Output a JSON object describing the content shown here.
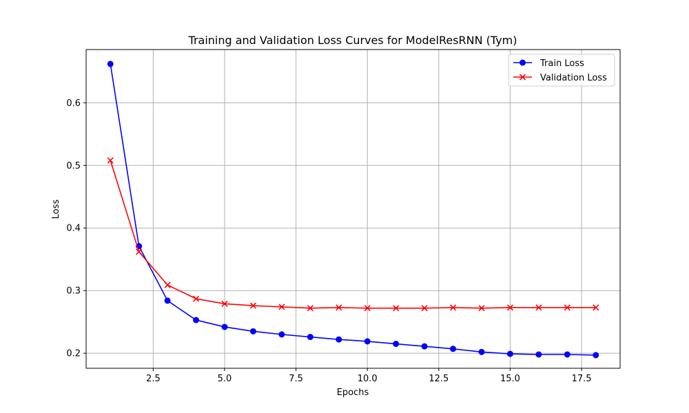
{
  "chart_data": {
    "type": "line",
    "title": "Training and Validation Loss Curves for ModelResRNN (Tym)",
    "xlabel": "Epochs",
    "ylabel": "Loss",
    "xlim": [
      0.15,
      18.85
    ],
    "ylim": [
      0.176,
      0.685
    ],
    "xticks": [
      2.5,
      5.0,
      7.5,
      10.0,
      12.5,
      15.0,
      17.5
    ],
    "xtick_labels": [
      "2.5",
      "5.0",
      "7.5",
      "10.0",
      "12.5",
      "15.0",
      "17.5"
    ],
    "yticks": [
      0.2,
      0.3,
      0.4,
      0.5,
      0.6
    ],
    "ytick_labels": [
      "0.2",
      "0.3",
      "0.4",
      "0.5",
      "0.6"
    ],
    "grid": true,
    "legend_position": "top-right",
    "x": [
      1,
      2,
      3,
      4,
      5,
      6,
      7,
      8,
      9,
      10,
      11,
      12,
      13,
      14,
      15,
      16,
      17,
      18
    ],
    "series": [
      {
        "name": "Train Loss",
        "color": "#0000ff",
        "marker": "circle",
        "values": [
          0.662,
          0.371,
          0.284,
          0.253,
          0.242,
          0.235,
          0.23,
          0.226,
          0.222,
          0.219,
          0.215,
          0.211,
          0.207,
          0.202,
          0.199,
          0.198,
          0.198,
          0.197
        ]
      },
      {
        "name": "Validation Loss",
        "color": "#ff0000",
        "marker": "x",
        "values": [
          0.508,
          0.362,
          0.309,
          0.287,
          0.279,
          0.276,
          0.274,
          0.272,
          0.273,
          0.272,
          0.272,
          0.272,
          0.273,
          0.272,
          0.273,
          0.273,
          0.273,
          0.273
        ]
      }
    ]
  }
}
